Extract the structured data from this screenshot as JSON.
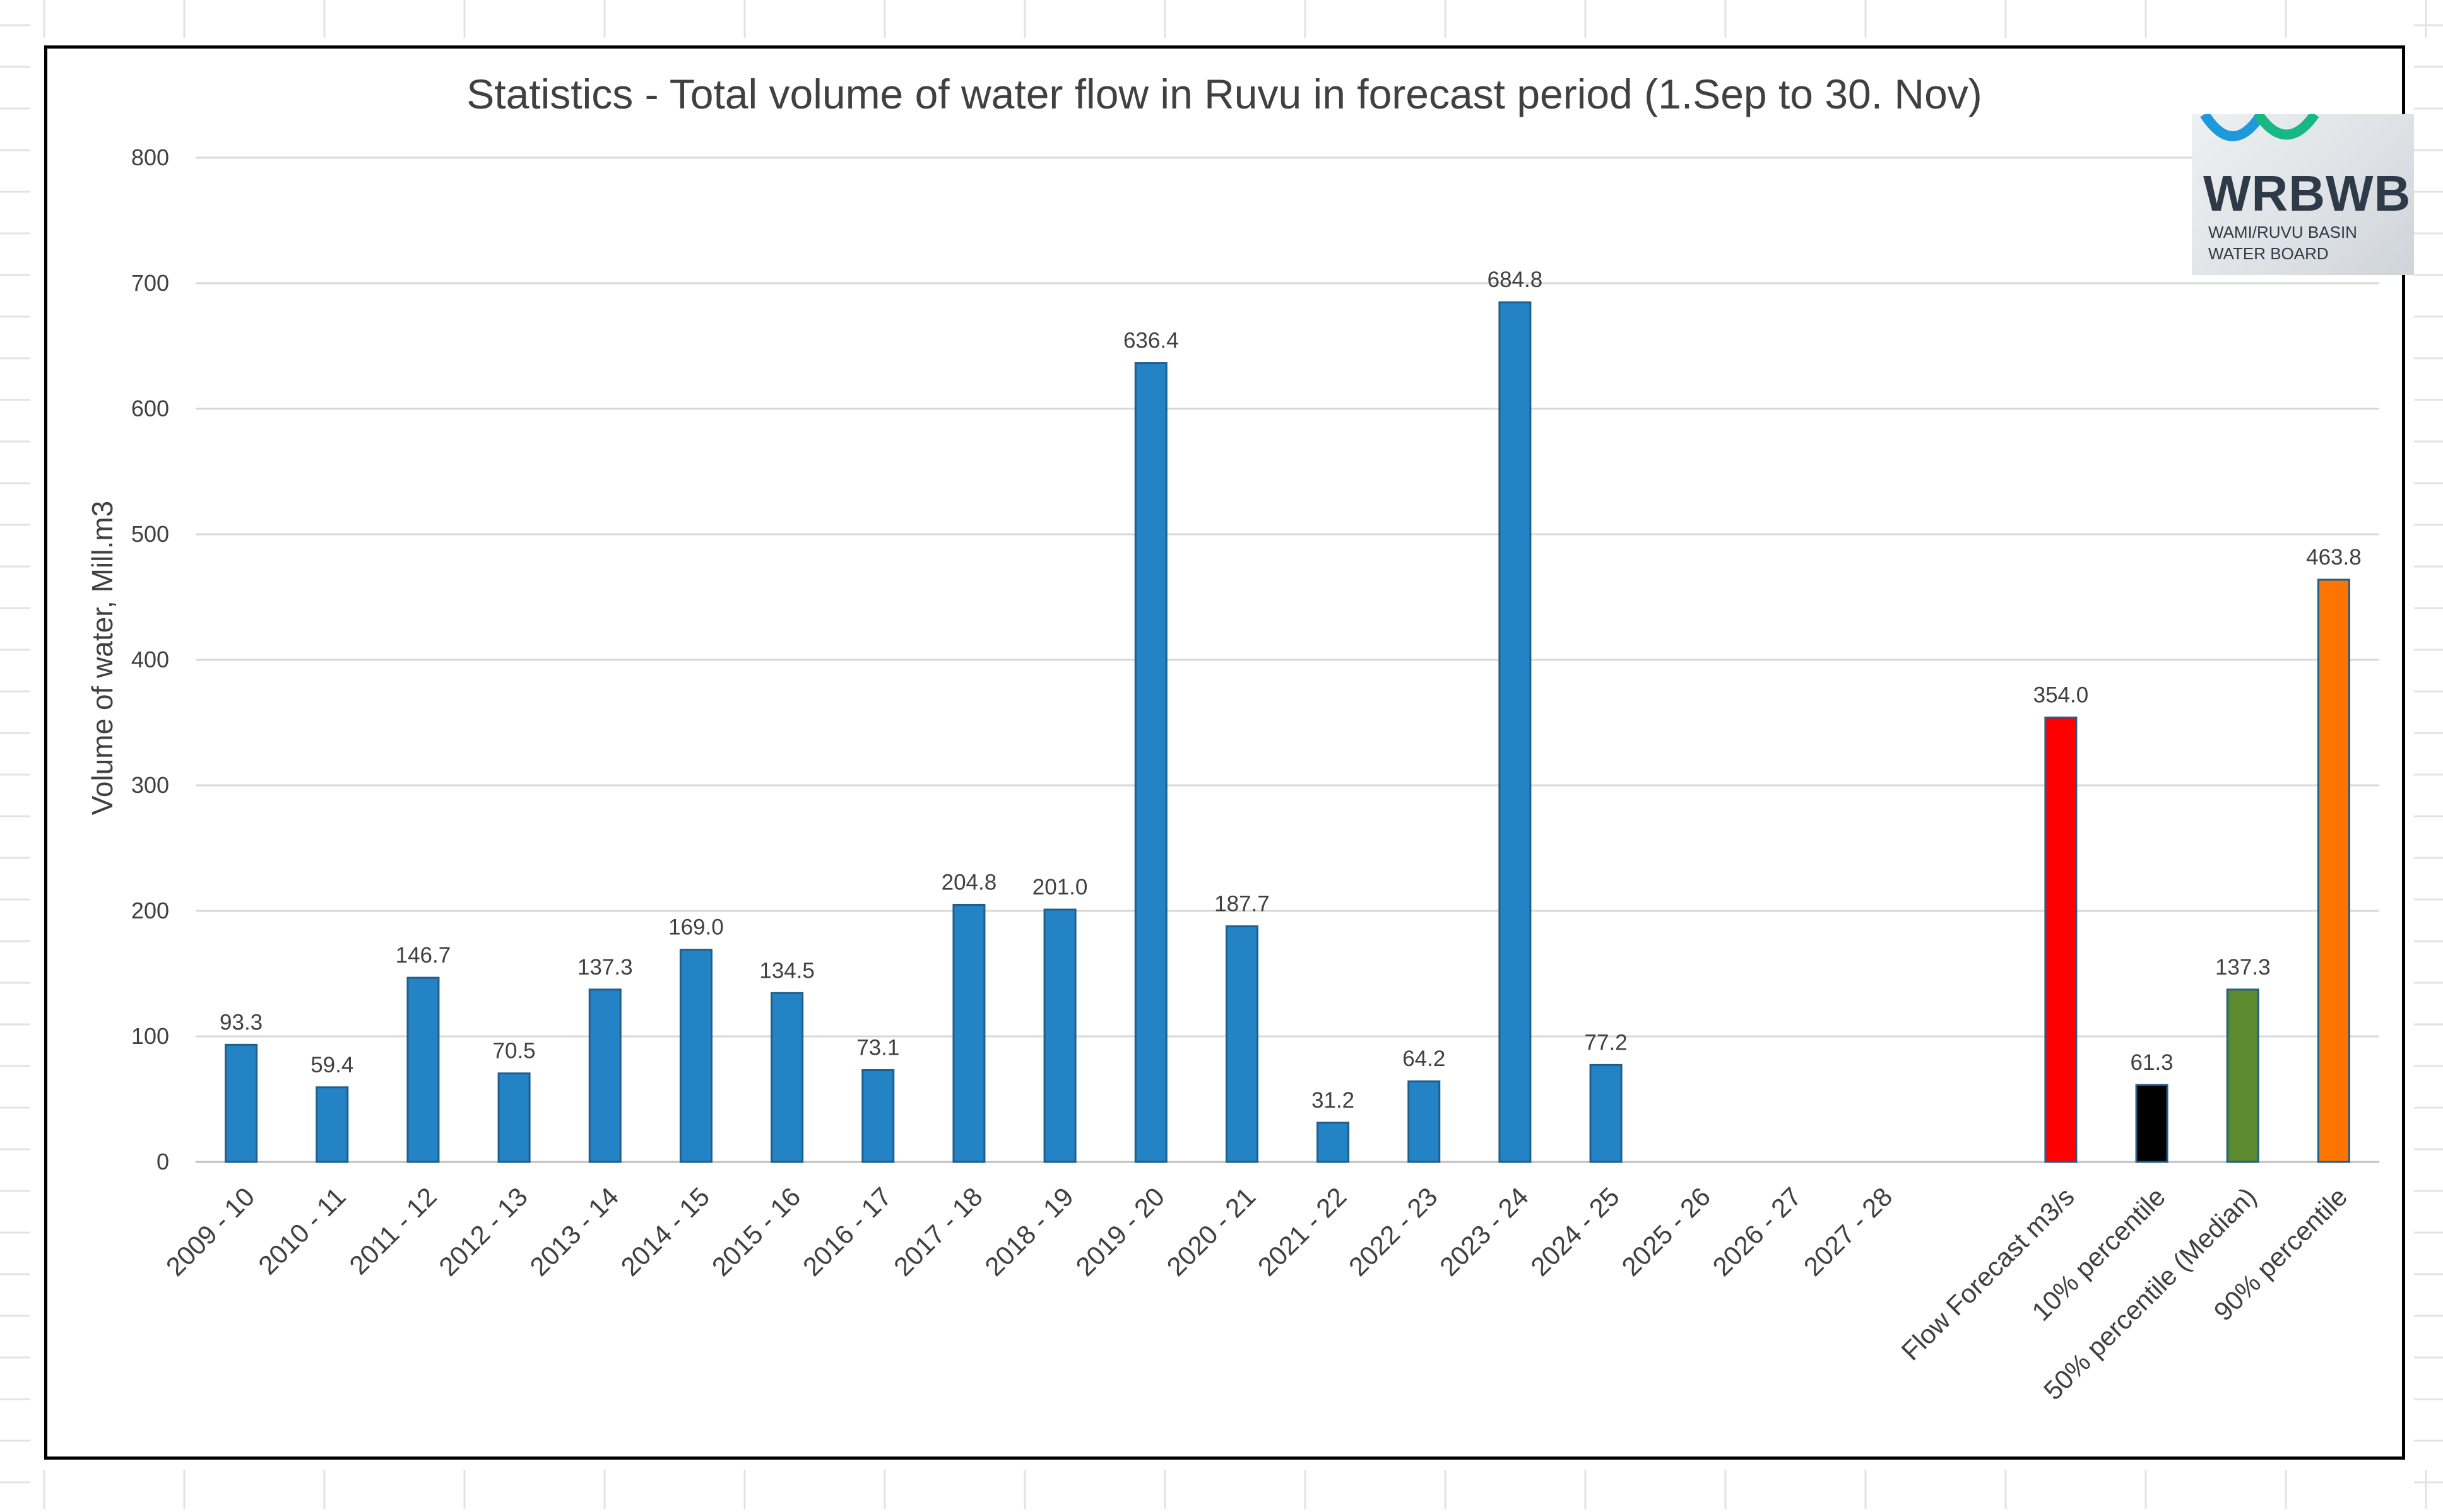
{
  "colors": {
    "bar_default": "#2383C4",
    "forecast": "#FF0000",
    "p10": "#000000",
    "p50": "#5C8A2E",
    "p90": "#FF7300",
    "grid": "#D9D9D9",
    "text": "#404040",
    "logo_blue": "#1E9ADB",
    "logo_green": "#17B884"
  },
  "logo": {
    "name": "WRBWB",
    "line1": "WAMI/RUVU BASIN",
    "line2": "WATER BOARD"
  },
  "chart_data": {
    "type": "bar",
    "title": "Statistics - Total volume of water flow in Ruvu in forecast period (1.Sep to 30. Nov)",
    "xlabel": "",
    "ylabel": "Volume of water, Mill.m3",
    "ylim": [
      0,
      800
    ],
    "yticks": [
      0,
      100,
      200,
      300,
      400,
      500,
      600,
      700,
      800
    ],
    "grid": true,
    "legend": "none",
    "categories": [
      "2009 - 10",
      "2010 - 11",
      "2011 - 12",
      "2012 - 13",
      "2013 - 14",
      "2014 - 15",
      "2015 - 16",
      "2016 - 17",
      "2017 - 18",
      "2018 - 19",
      "2019 - 20",
      "2020 - 21",
      "2021 - 22",
      "2022 - 23",
      "2023 - 24",
      "2024 - 25",
      "2025 - 26",
      "2026 - 27",
      "2027 - 28",
      "",
      "Flow Forecast m3/s",
      "10% percentile",
      "50% percentile (Median)",
      "90% percentile"
    ],
    "values": [
      93.3,
      59.4,
      146.7,
      70.5,
      137.3,
      169.0,
      134.5,
      73.1,
      204.8,
      201.0,
      636.4,
      187.7,
      31.2,
      64.2,
      684.8,
      77.2,
      null,
      null,
      null,
      null,
      354.0,
      61.3,
      137.3,
      463.8
    ],
    "labels": [
      "93.3",
      "59.4",
      "146.7",
      "70.5",
      "137.3",
      "169.0",
      "134.5",
      "73.1",
      "204.8",
      "201.0",
      "636.4",
      "187.7",
      "31.2",
      "64.2",
      "684.8",
      "77.2",
      "",
      "",
      "",
      "",
      "354.0",
      "61.3",
      "137.3",
      "463.8"
    ],
    "bar_colors": [
      "bar_default",
      "bar_default",
      "bar_default",
      "bar_default",
      "bar_default",
      "bar_default",
      "bar_default",
      "bar_default",
      "bar_default",
      "bar_default",
      "bar_default",
      "bar_default",
      "bar_default",
      "bar_default",
      "bar_default",
      "bar_default",
      "bar_default",
      "bar_default",
      "bar_default",
      "bar_default",
      "forecast",
      "p10",
      "p50",
      "p90"
    ]
  }
}
